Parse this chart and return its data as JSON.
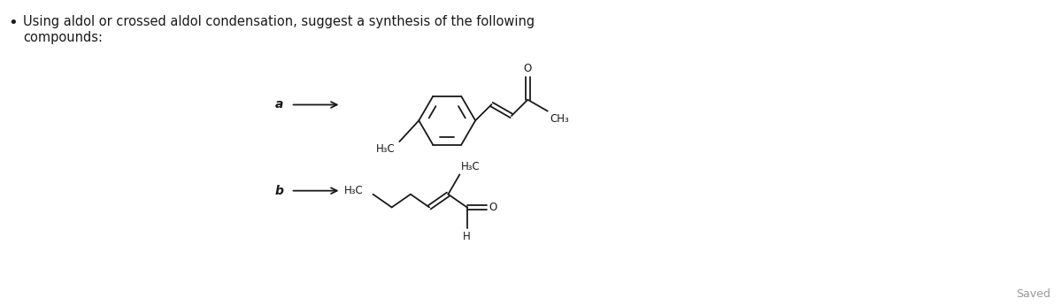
{
  "title_text": "Using aldol or crossed aldol condensation, suggest a synthesis of the following\ncompounds:",
  "bg_color": "#ffffff",
  "text_color": "#1a1a1a",
  "label_a": "a",
  "label_b": "b",
  "saved_text": "Saved",
  "line_color": "#1a1a1a",
  "figsize": [
    12.0,
    3.46
  ],
  "dpi": 100
}
